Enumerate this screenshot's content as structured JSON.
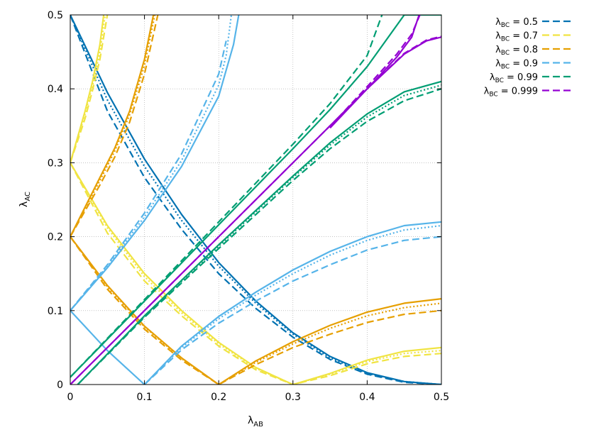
{
  "chart_data": {
    "type": "line",
    "xlabel": {
      "main": "λ",
      "sub": "AB"
    },
    "ylabel": {
      "main": "λ",
      "sub": "AC"
    },
    "xlim": [
      0,
      0.5
    ],
    "ylim": [
      0,
      0.5
    ],
    "xticks": [
      "0",
      "0.1",
      "0.2",
      "0.3",
      "0.4",
      "0.5"
    ],
    "yticks": [
      "0",
      "0.1",
      "0.2",
      "0.3",
      "0.4",
      "0.5"
    ],
    "grid": true,
    "legend_position": "outside-top-right",
    "note": "",
    "series": [
      {
        "name": "λBC = 0.5",
        "legend_main": "λ",
        "legend_sub": "BC",
        "legend_value": " = 0.5",
        "color": "#0072b2",
        "curves": [
          {
            "style": "solid",
            "x": [
              0,
              0.05,
              0.1,
              0.15,
              0.2,
              0.25,
              0.3,
              0.35,
              0.4,
              0.45,
              0.5
            ],
            "y": [
              0.5,
              0.395,
              0.305,
              0.23,
              0.165,
              0.113,
              0.07,
              0.038,
              0.016,
              0.004,
              0
            ]
          },
          {
            "style": "dotted",
            "x": [
              0,
              0.05,
              0.1,
              0.15,
              0.2,
              0.25,
              0.3,
              0.35,
              0.4,
              0.45,
              0.5
            ],
            "y": [
              0.5,
              0.385,
              0.295,
              0.222,
              0.16,
              0.11,
              0.068,
              0.036,
              0.015,
              0.004,
              0
            ]
          },
          {
            "style": "dashed",
            "x": [
              0,
              0.05,
              0.1,
              0.15,
              0.2,
              0.25,
              0.3,
              0.35,
              0.4,
              0.45,
              0.5
            ],
            "y": [
              0.5,
              0.37,
              0.28,
              0.21,
              0.15,
              0.103,
              0.064,
              0.034,
              0.014,
              0.003,
              0
            ]
          }
        ]
      },
      {
        "name": "λBC = 0.7",
        "legend_main": "λ",
        "legend_sub": "BC",
        "legend_value": " = 0.7",
        "color": "#f0e442",
        "curves": [
          {
            "style": "solid",
            "x": [
              0,
              0.05,
              0.1,
              0.15,
              0.2,
              0.25,
              0.3,
              0.35,
              0.4,
              0.45,
              0.5
            ],
            "y": [
              0.3,
              0.215,
              0.15,
              0.1,
              0.057,
              0.023,
              0,
              0.015,
              0.033,
              0.045,
              0.05
            ]
          },
          {
            "style": "dotted",
            "x": [
              0,
              0.05,
              0.1,
              0.15,
              0.2,
              0.25,
              0.3,
              0.35,
              0.4,
              0.45,
              0.5
            ],
            "y": [
              0.3,
              0.212,
              0.146,
              0.097,
              0.055,
              0.022,
              0,
              0.014,
              0.031,
              0.042,
              0.046
            ]
          },
          {
            "style": "dashed",
            "x": [
              0,
              0.05,
              0.1,
              0.15,
              0.2,
              0.25,
              0.3,
              0.35,
              0.4,
              0.45,
              0.5
            ],
            "y": [
              0.3,
              0.205,
              0.14,
              0.093,
              0.052,
              0.02,
              0,
              0.012,
              0.028,
              0.038,
              0.042
            ]
          },
          {
            "style": "solid",
            "x": [
              0,
              0.01,
              0.02,
              0.03,
              0.04,
              0.045
            ],
            "y": [
              0.3,
              0.335,
              0.37,
              0.41,
              0.46,
              0.5
            ]
          },
          {
            "style": "dotted",
            "x": [
              0,
              0.01,
              0.02,
              0.03,
              0.04,
              0.047
            ],
            "y": [
              0.3,
              0.333,
              0.366,
              0.405,
              0.45,
              0.5
            ]
          },
          {
            "style": "dashed",
            "x": [
              0,
              0.01,
              0.02,
              0.03,
              0.04,
              0.05
            ],
            "y": [
              0.3,
              0.33,
              0.36,
              0.398,
              0.44,
              0.5
            ]
          }
        ]
      },
      {
        "name": "λBC = 0.8",
        "legend_main": "λ",
        "legend_sub": "BC",
        "legend_value": " = 0.8",
        "color": "#e69f00",
        "curves": [
          {
            "style": "solid",
            "x": [
              0,
              0.05,
              0.1,
              0.15,
              0.2,
              0.25,
              0.3,
              0.35,
              0.4,
              0.45,
              0.5
            ],
            "y": [
              0.2,
              0.134,
              0.079,
              0.036,
              0,
              0.032,
              0.058,
              0.08,
              0.098,
              0.11,
              0.116
            ]
          },
          {
            "style": "dotted",
            "x": [
              0,
              0.05,
              0.1,
              0.15,
              0.2,
              0.25,
              0.3,
              0.35,
              0.4,
              0.45,
              0.5
            ],
            "y": [
              0.2,
              0.132,
              0.078,
              0.035,
              0,
              0.03,
              0.055,
              0.076,
              0.093,
              0.104,
              0.11
            ]
          },
          {
            "style": "dashed",
            "x": [
              0,
              0.05,
              0.1,
              0.15,
              0.2,
              0.25,
              0.3,
              0.35,
              0.4,
              0.45,
              0.5
            ],
            "y": [
              0.2,
              0.129,
              0.075,
              0.033,
              0,
              0.027,
              0.05,
              0.068,
              0.084,
              0.095,
              0.1
            ]
          },
          {
            "style": "solid",
            "x": [
              0,
              0.02,
              0.04,
              0.06,
              0.08,
              0.1,
              0.112
            ],
            "y": [
              0.2,
              0.24,
              0.28,
              0.32,
              0.37,
              0.44,
              0.5
            ]
          },
          {
            "style": "dotted",
            "x": [
              0,
              0.02,
              0.04,
              0.06,
              0.08,
              0.1,
              0.114
            ],
            "y": [
              0.2,
              0.238,
              0.276,
              0.316,
              0.365,
              0.432,
              0.5
            ]
          },
          {
            "style": "dashed",
            "x": [
              0,
              0.02,
              0.04,
              0.06,
              0.08,
              0.1,
              0.118
            ],
            "y": [
              0.2,
              0.235,
              0.27,
              0.308,
              0.355,
              0.42,
              0.5
            ]
          }
        ]
      },
      {
        "name": "λBC = 0.9",
        "legend_main": "λ",
        "legend_sub": "BC",
        "legend_value": " = 0.9",
        "color": "#56b4e9",
        "curves": [
          {
            "style": "solid",
            "x": [
              0,
              0.05,
              0.1
            ],
            "y": [
              0.1,
              0.046,
              0
            ]
          },
          {
            "style": "solid",
            "x": [
              0.1,
              0.15,
              0.2,
              0.25,
              0.3,
              0.35,
              0.4,
              0.45,
              0.5
            ],
            "y": [
              0,
              0.052,
              0.092,
              0.125,
              0.155,
              0.18,
              0.2,
              0.215,
              0.22
            ]
          },
          {
            "style": "dotted",
            "x": [
              0.1,
              0.15,
              0.2,
              0.25,
              0.3,
              0.35,
              0.4,
              0.45,
              0.5
            ],
            "y": [
              0,
              0.05,
              0.089,
              0.121,
              0.15,
              0.175,
              0.195,
              0.209,
              0.215
            ]
          },
          {
            "style": "dashed",
            "x": [
              0.1,
              0.15,
              0.2,
              0.25,
              0.3,
              0.35,
              0.4,
              0.45,
              0.5
            ],
            "y": [
              0,
              0.047,
              0.083,
              0.113,
              0.14,
              0.162,
              0.182,
              0.195,
              0.2
            ]
          },
          {
            "style": "solid",
            "x": [
              0,
              0.05,
              0.1,
              0.15,
              0.2,
              0.22,
              0.227
            ],
            "y": [
              0.1,
              0.158,
              0.222,
              0.295,
              0.39,
              0.46,
              0.5
            ]
          },
          {
            "style": "dotted",
            "x": [
              0,
              0.05,
              0.1,
              0.15,
              0.2,
              0.21,
              0.217
            ],
            "y": [
              0.1,
              0.16,
              0.227,
              0.303,
              0.405,
              0.445,
              0.5
            ]
          },
          {
            "style": "dashed",
            "x": [
              0,
              0.05,
              0.1,
              0.15,
              0.2,
              0.21
            ],
            "y": [
              0.1,
              0.162,
              0.232,
              0.312,
              0.42,
              0.465
            ]
          }
        ]
      },
      {
        "name": "λBC = 0.99",
        "legend_main": "λ",
        "legend_sub": "BC",
        "legend_value": " = 0.99",
        "color": "#009e73",
        "curves": [
          {
            "style": "solid",
            "x": [
              0,
              0.1,
              0.2,
              0.3,
              0.35,
              0.4,
              0.45,
              0.5
            ],
            "y": [
              0.01,
              0.113,
              0.216,
              0.319,
              0.372,
              0.43,
              0.5,
              0.5
            ]
          },
          {
            "style": "dashed",
            "x": [
              0,
              0.1,
              0.2,
              0.3,
              0.35,
              0.4,
              0.42
            ],
            "y": [
              0.01,
              0.115,
              0.22,
              0.325,
              0.38,
              0.445,
              0.5
            ]
          },
          {
            "style": "solid",
            "x": [
              0.01,
              0.1,
              0.2,
              0.3,
              0.35,
              0.4,
              0.45,
              0.5
            ],
            "y": [
              0,
              0.093,
              0.189,
              0.282,
              0.327,
              0.366,
              0.396,
              0.41
            ]
          },
          {
            "style": "dotted",
            "x": [
              0.01,
              0.1,
              0.2,
              0.3,
              0.35,
              0.4,
              0.45,
              0.5
            ],
            "y": [
              0,
              0.092,
              0.187,
              0.28,
              0.324,
              0.362,
              0.391,
              0.405
            ]
          },
          {
            "style": "dashed",
            "x": [
              0.01,
              0.1,
              0.2,
              0.3,
              0.35,
              0.4,
              0.45,
              0.5
            ],
            "y": [
              0,
              0.091,
              0.184,
              0.276,
              0.319,
              0.356,
              0.384,
              0.4
            ]
          }
        ]
      },
      {
        "name": "λBC = 0.999",
        "legend_main": "λ",
        "legend_sub": "BC",
        "legend_value": " = 0.999",
        "color": "#9400d3",
        "curves": [
          {
            "style": "solid",
            "x": [
              0,
              0.1,
              0.2,
              0.3,
              0.4,
              0.45,
              0.48,
              0.5
            ],
            "y": [
              0,
              0.1,
              0.2,
              0.3,
              0.4,
              0.447,
              0.465,
              0.47
            ]
          },
          {
            "style": "dashed",
            "x": [
              0,
              0.1,
              0.2,
              0.3,
              0.4,
              0.45,
              0.48,
              0.5
            ],
            "y": [
              0,
              0.1,
              0.2,
              0.3,
              0.4,
              0.448,
              0.466,
              0.471
            ]
          },
          {
            "style": "solid",
            "x": [
              0.35,
              0.4,
              0.44,
              0.46,
              0.47
            ],
            "y": [
              0.347,
              0.4,
              0.443,
              0.47,
              0.5
            ]
          },
          {
            "style": "dashed",
            "x": [
              0.35,
              0.4,
              0.44,
              0.46,
              0.471
            ],
            "y": [
              0.349,
              0.403,
              0.447,
              0.474,
              0.5
            ]
          }
        ]
      }
    ]
  }
}
